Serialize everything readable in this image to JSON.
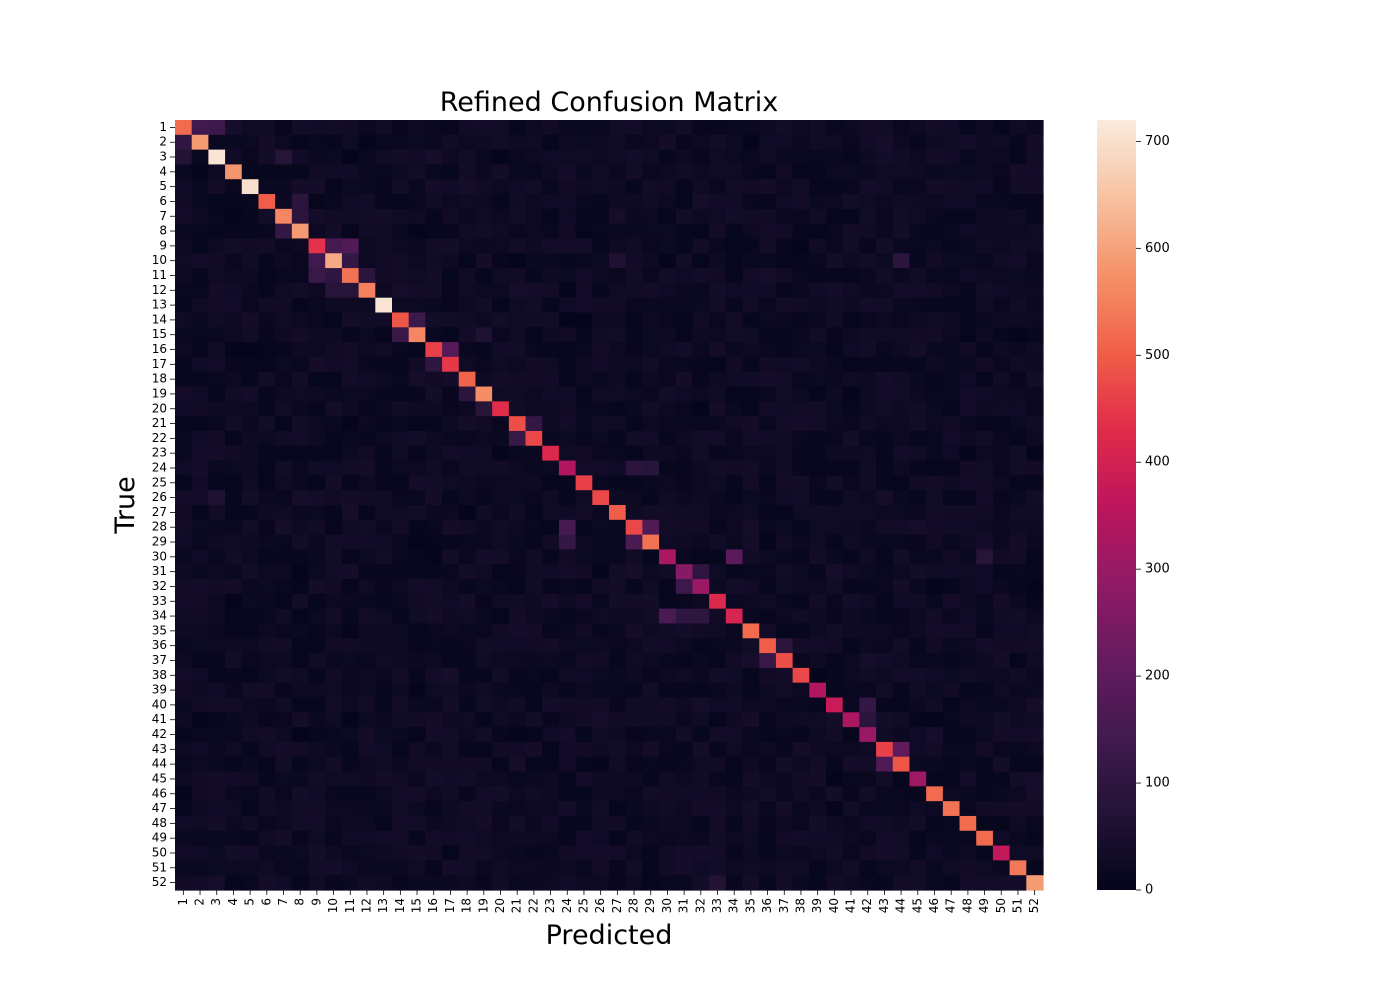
{
  "chart_data": {
    "type": "heatmap",
    "title": "Refined Confusion Matrix",
    "xlabel": "Predicted",
    "ylabel": "True",
    "classes": [
      "1",
      "2",
      "3",
      "4",
      "5",
      "6",
      "7",
      "8",
      "9",
      "10",
      "11",
      "12",
      "13",
      "14",
      "15",
      "16",
      "17",
      "18",
      "19",
      "20",
      "21",
      "22",
      "23",
      "24",
      "25",
      "26",
      "27",
      "28",
      "29",
      "30",
      "31",
      "32",
      "33",
      "34",
      "35",
      "36",
      "37",
      "38",
      "39",
      "40",
      "41",
      "42",
      "43",
      "44",
      "45",
      "46",
      "47",
      "48",
      "49",
      "50",
      "51",
      "52"
    ],
    "diagonal": [
      520,
      590,
      710,
      580,
      700,
      500,
      560,
      590,
      440,
      610,
      530,
      550,
      710,
      490,
      560,
      460,
      450,
      510,
      570,
      430,
      480,
      470,
      420,
      340,
      460,
      470,
      500,
      470,
      530,
      330,
      270,
      300,
      420,
      410,
      520,
      500,
      480,
      470,
      340,
      380,
      330,
      300,
      460,
      490,
      310,
      520,
      530,
      520,
      520,
      370,
      540,
      590
    ],
    "off_diagonal": [
      {
        "row": "1",
        "col": "2",
        "value": 140
      },
      {
        "row": "1",
        "col": "3",
        "value": 130
      },
      {
        "row": "2",
        "col": "1",
        "value": 100
      },
      {
        "row": "3",
        "col": "1",
        "value": 70
      },
      {
        "row": "3",
        "col": "7",
        "value": 80
      },
      {
        "row": "6",
        "col": "8",
        "value": 90
      },
      {
        "row": "7",
        "col": "8",
        "value": 90
      },
      {
        "row": "8",
        "col": "7",
        "value": 110
      },
      {
        "row": "9",
        "col": "10",
        "value": 150
      },
      {
        "row": "9",
        "col": "11",
        "value": 170
      },
      {
        "row": "10",
        "col": "9",
        "value": 140
      },
      {
        "row": "10",
        "col": "11",
        "value": 110
      },
      {
        "row": "10",
        "col": "27",
        "value": 60
      },
      {
        "row": "10",
        "col": "44",
        "value": 90
      },
      {
        "row": "11",
        "col": "9",
        "value": 120
      },
      {
        "row": "11",
        "col": "10",
        "value": 100
      },
      {
        "row": "11",
        "col": "12",
        "value": 90
      },
      {
        "row": "12",
        "col": "10",
        "value": 80
      },
      {
        "row": "12",
        "col": "11",
        "value": 80
      },
      {
        "row": "14",
        "col": "15",
        "value": 130
      },
      {
        "row": "15",
        "col": "14",
        "value": 120
      },
      {
        "row": "15",
        "col": "19",
        "value": 60
      },
      {
        "row": "16",
        "col": "17",
        "value": 180
      },
      {
        "row": "17",
        "col": "16",
        "value": 100
      },
      {
        "row": "19",
        "col": "18",
        "value": 90
      },
      {
        "row": "20",
        "col": "19",
        "value": 80
      },
      {
        "row": "21",
        "col": "22",
        "value": 110
      },
      {
        "row": "22",
        "col": "21",
        "value": 120
      },
      {
        "row": "24",
        "col": "28",
        "value": 90
      },
      {
        "row": "24",
        "col": "29",
        "value": 80
      },
      {
        "row": "26",
        "col": "3",
        "value": 60
      },
      {
        "row": "28",
        "col": "24",
        "value": 150
      },
      {
        "row": "28",
        "col": "29",
        "value": 170
      },
      {
        "row": "29",
        "col": "24",
        "value": 110
      },
      {
        "row": "29",
        "col": "28",
        "value": 160
      },
      {
        "row": "30",
        "col": "34",
        "value": 190
      },
      {
        "row": "30",
        "col": "49",
        "value": 80
      },
      {
        "row": "31",
        "col": "32",
        "value": 100
      },
      {
        "row": "32",
        "col": "31",
        "value": 130
      },
      {
        "row": "34",
        "col": "30",
        "value": 160
      },
      {
        "row": "34",
        "col": "31",
        "value": 100
      },
      {
        "row": "34",
        "col": "32",
        "value": 100
      },
      {
        "row": "36",
        "col": "37",
        "value": 90
      },
      {
        "row": "37",
        "col": "36",
        "value": 120
      },
      {
        "row": "40",
        "col": "42",
        "value": 110
      },
      {
        "row": "41",
        "col": "42",
        "value": 90
      },
      {
        "row": "43",
        "col": "44",
        "value": 200
      },
      {
        "row": "44",
        "col": "43",
        "value": 170
      },
      {
        "row": "52",
        "col": "33",
        "value": 70
      }
    ],
    "colorbar": {
      "ticks": [
        0,
        100,
        200,
        300,
        400,
        500,
        600,
        700
      ],
      "min": 0,
      "max": 720
    }
  }
}
